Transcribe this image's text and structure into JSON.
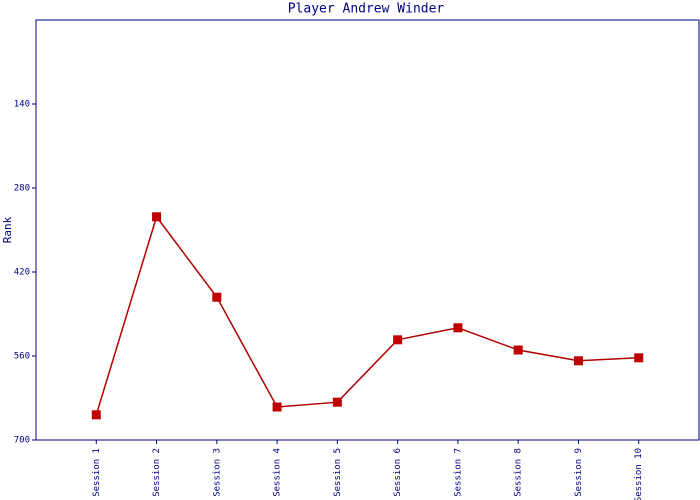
{
  "chart_data": {
    "type": "line",
    "title": "Player Andrew Winder",
    "y_label": "Rank",
    "categories": [
      "Session 1",
      "Session 2",
      "Session 3",
      "Session 4",
      "Session 5",
      "Session 6",
      "Session 7",
      "Session 8",
      "Session 9",
      "Session 10"
    ],
    "series": [
      {
        "name": "Rank",
        "color": "#b00000",
        "marker_color": "#c00000",
        "values": [
          658,
          328,
          462,
          645,
          637,
          533,
          513,
          550,
          568,
          563
        ]
      }
    ],
    "ylim": [
      0,
      700
    ],
    "y_inverted": true,
    "yticks": [
      140,
      280,
      420,
      560,
      700
    ],
    "axis_color": "#000080"
  }
}
